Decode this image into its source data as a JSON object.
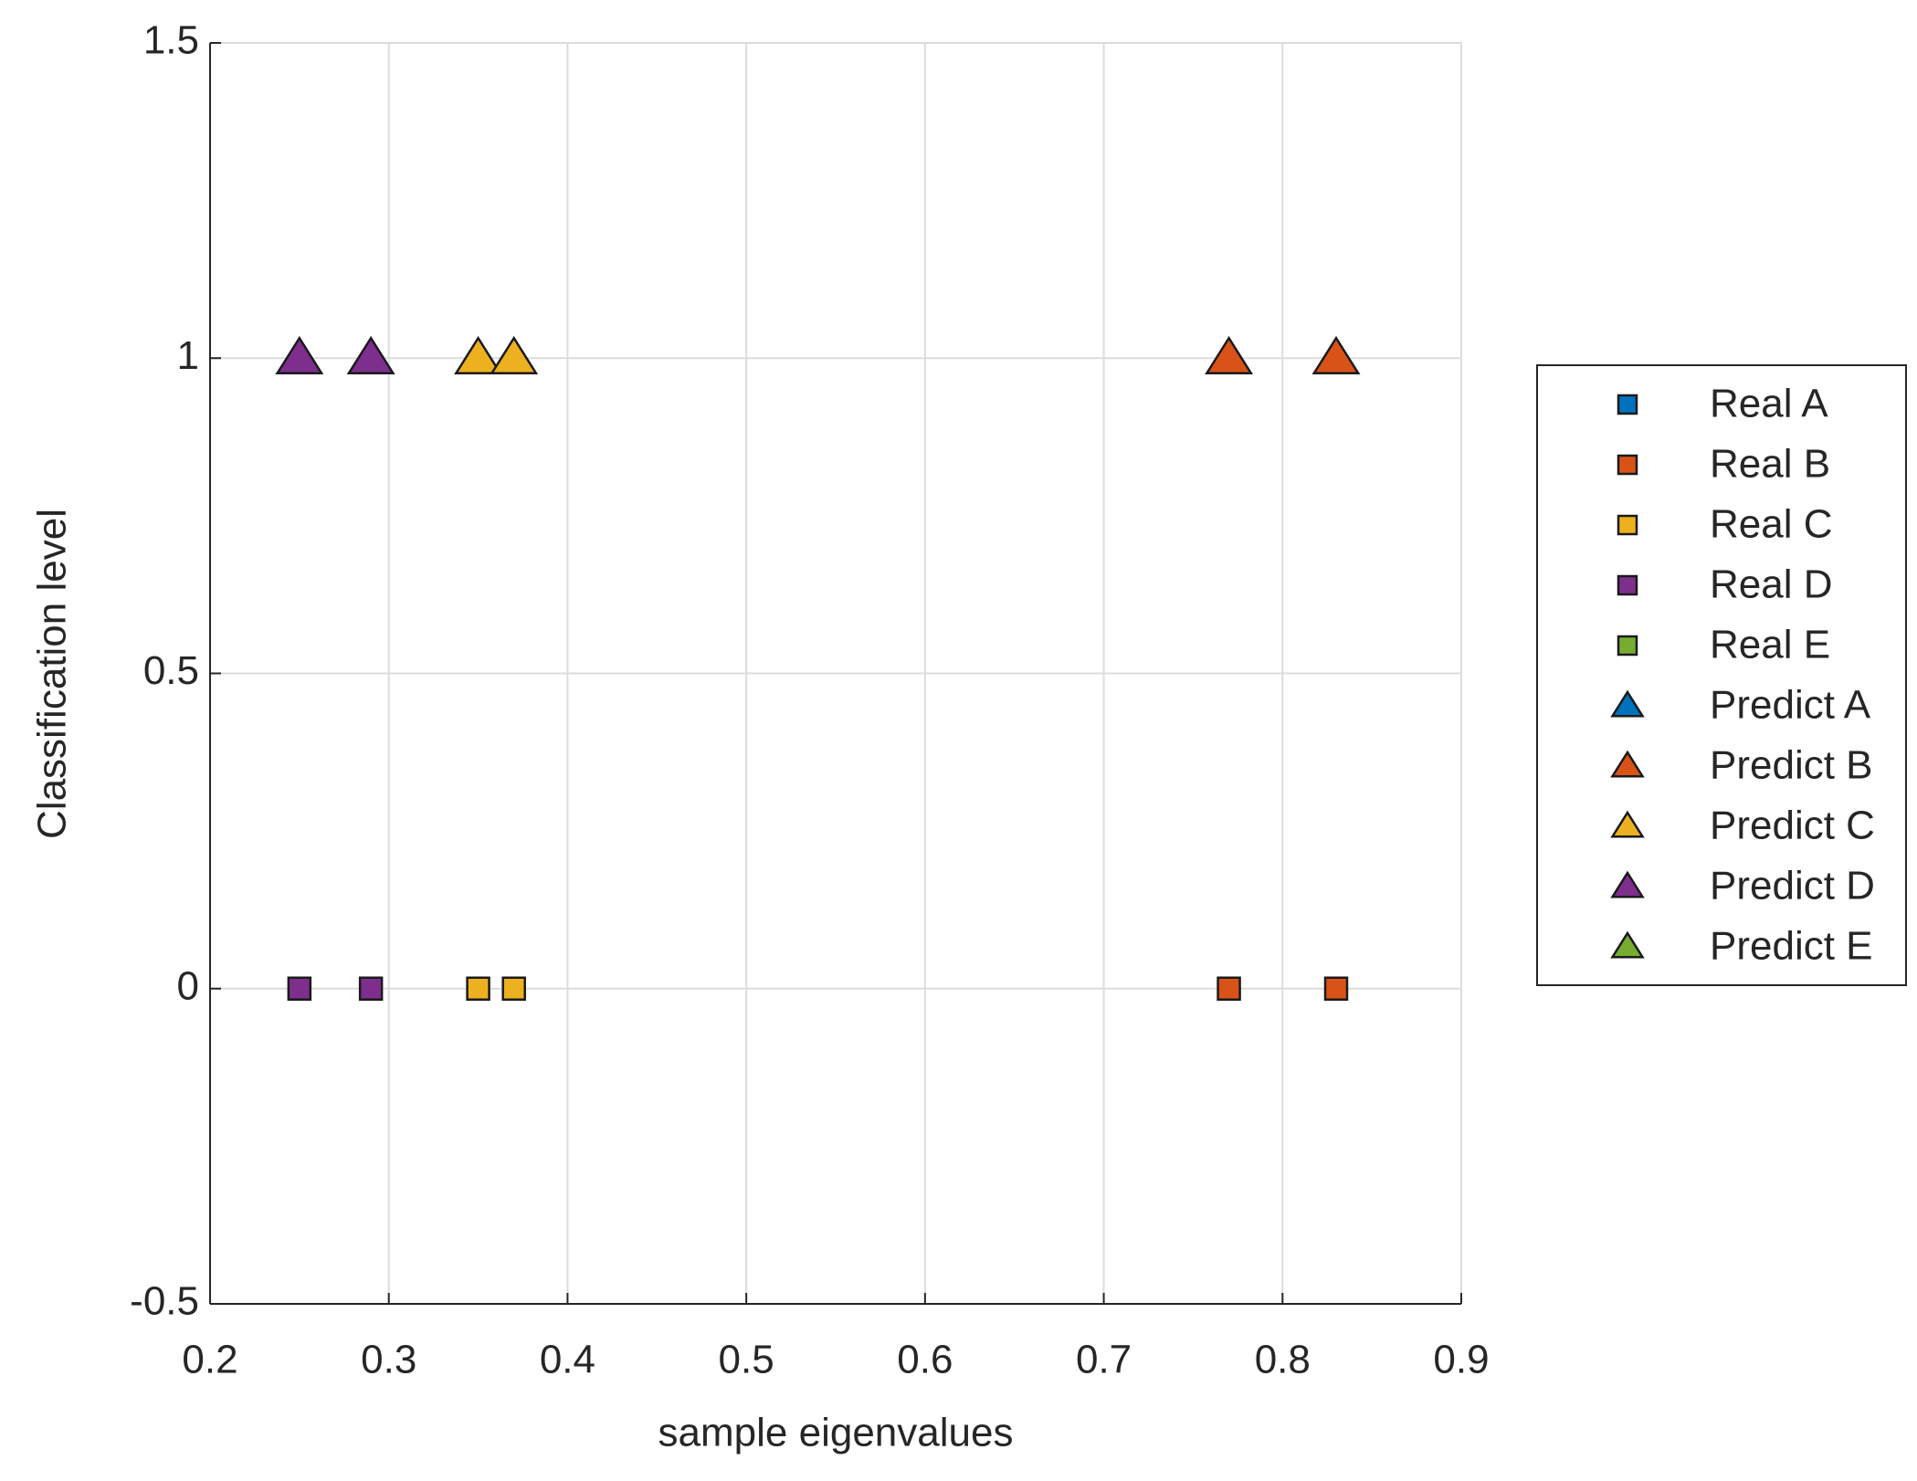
{
  "chart_data": {
    "type": "scatter",
    "xlabel": "sample eigenvalues",
    "ylabel": "Classification level",
    "xlim": [
      0.2,
      0.9
    ],
    "xticks": [
      0.2,
      0.3,
      0.4,
      0.5,
      0.6,
      0.7,
      0.8,
      0.9
    ],
    "ylim": [
      -0.5,
      1.5
    ],
    "yticks": [
      -0.5,
      0,
      0.5,
      1,
      1.5
    ],
    "grid": true,
    "legend": "outside-right",
    "series": [
      {
        "name": "Real A",
        "color": "#0072BD",
        "marker": "square",
        "x": [],
        "values": []
      },
      {
        "name": "Real B",
        "color": "#D95319",
        "marker": "square",
        "x": [
          0.77,
          0.83
        ],
        "values": [
          0,
          0
        ]
      },
      {
        "name": "Real C",
        "color": "#EDB120",
        "marker": "square",
        "x": [
          0.35,
          0.37
        ],
        "values": [
          0,
          0
        ]
      },
      {
        "name": "Real D",
        "color": "#7E2F8E",
        "marker": "square",
        "x": [
          0.25,
          0.29
        ],
        "values": [
          0,
          0
        ]
      },
      {
        "name": "Real E",
        "color": "#77AC30",
        "marker": "square",
        "x": [],
        "values": []
      },
      {
        "name": "Predict A",
        "color": "#0072BD",
        "marker": "triangle",
        "x": [],
        "values": []
      },
      {
        "name": "Predict B",
        "color": "#D95319",
        "marker": "triangle",
        "x": [
          0.77,
          0.83
        ],
        "values": [
          1,
          1
        ]
      },
      {
        "name": "Predict C",
        "color": "#EDB120",
        "marker": "triangle",
        "x": [
          0.35,
          0.37
        ],
        "values": [
          1,
          1
        ]
      },
      {
        "name": "Predict D",
        "color": "#7E2F8E",
        "marker": "triangle",
        "x": [
          0.25,
          0.29
        ],
        "values": [
          1,
          1
        ]
      },
      {
        "name": "Predict E",
        "color": "#77AC30",
        "marker": "triangle",
        "x": [],
        "values": []
      }
    ]
  }
}
